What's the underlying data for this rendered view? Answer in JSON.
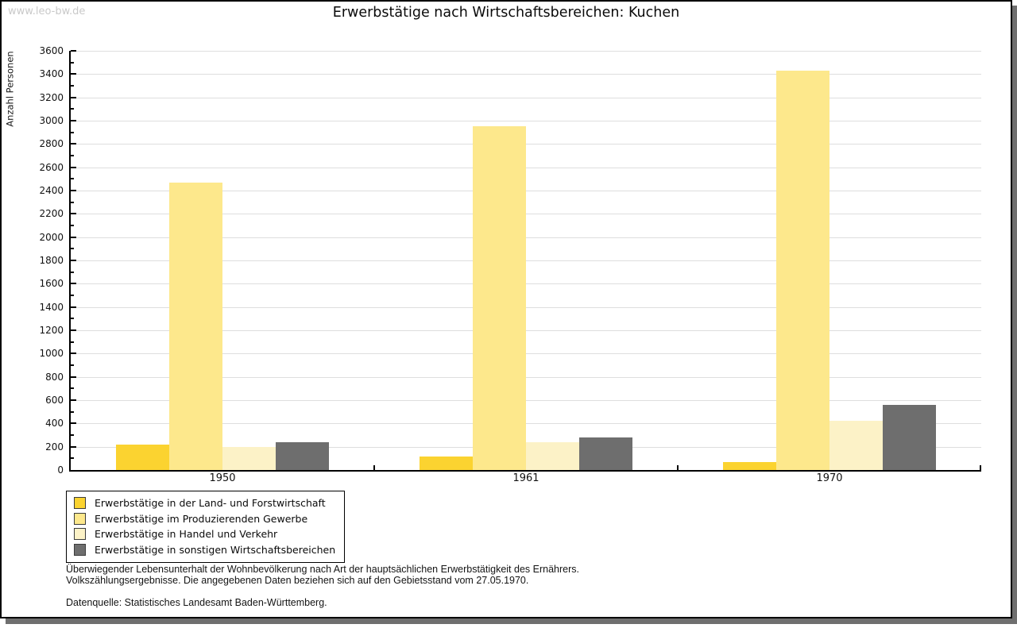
{
  "watermark": "www.leo-bw.de",
  "title": "Erwerbstätige nach Wirtschaftsbereichen: Kuchen",
  "chart_data": {
    "type": "bar",
    "title": "Erwerbstätige nach Wirtschaftsbereichen: Kuchen",
    "xlabel": "",
    "ylabel": "Anzahl Personen",
    "categories": [
      "1950",
      "1961",
      "1970"
    ],
    "series": [
      {
        "name": "Erwerbstätige in der Land- und Forstwirtschaft",
        "color": "#FBD330",
        "values": [
          215,
          115,
          70
        ]
      },
      {
        "name": "Erwerbstätige im Produzierenden Gewerbe",
        "color": "#FDE88C",
        "values": [
          2465,
          2950,
          3430
        ]
      },
      {
        "name": "Erwerbstätige in Handel und Verkehr",
        "color": "#FCF2C7",
        "values": [
          200,
          240,
          425
        ]
      },
      {
        "name": "Erwerbstätige in sonstigen Wirtschaftsbereichen",
        "color": "#6E6E6E",
        "values": [
          240,
          280,
          560
        ]
      }
    ],
    "ylim": [
      0,
      3600
    ],
    "ytick_step": 200,
    "ytick_minor_step": 100,
    "grid": true,
    "gridline_color": "#dedede",
    "legend_position": "bottom-left"
  },
  "footer": {
    "line1": "Überwiegender Lebensunterhalt der Wohnbevölkerung nach Art der hauptsächlichen Erwerbstätigkeit des Ernährers.",
    "line2": "Volkszählungsergebnisse. Die angegebenen Daten beziehen sich auf den Gebietsstand vom 27.05.1970.",
    "source": "Datenquelle: Statistisches Landesamt Baden-Württemberg."
  }
}
